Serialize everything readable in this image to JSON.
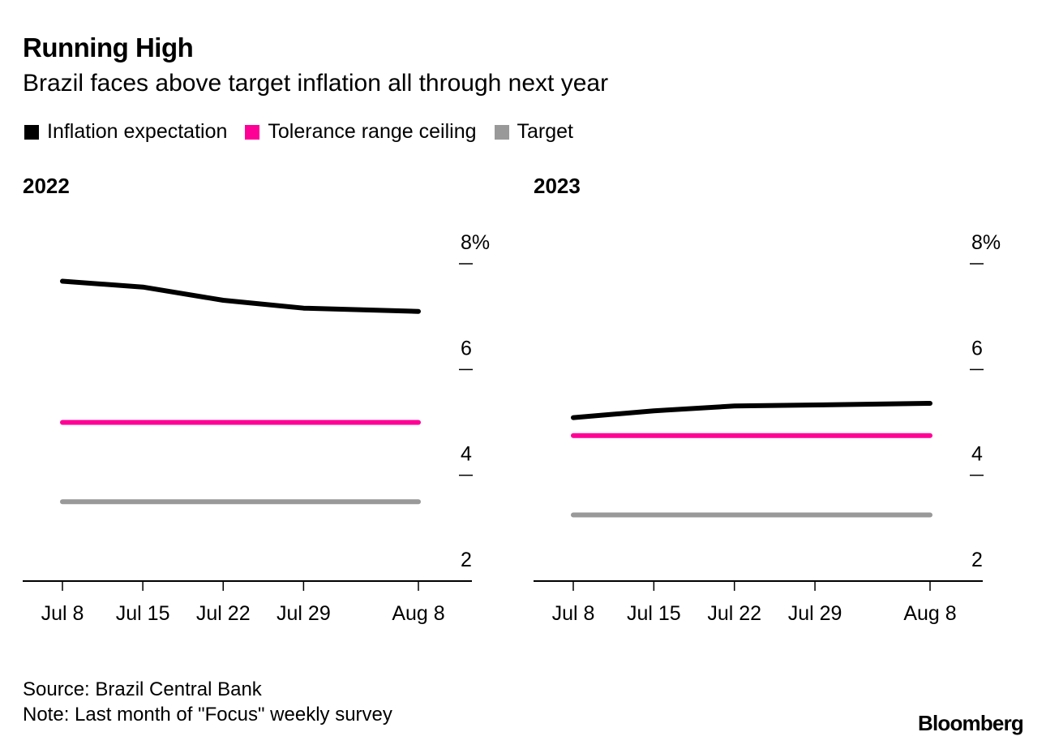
{
  "header": {
    "title": "Running High",
    "subtitle": "Brazil faces above target inflation all through next year"
  },
  "legend": [
    {
      "label": "Inflation expectation",
      "color": "#000000"
    },
    {
      "label": "Tolerance range ceiling",
      "color": "#ff0096"
    },
    {
      "label": "Target",
      "color": "#999999"
    }
  ],
  "footer": {
    "source": "Source: Brazil Central Bank",
    "note": "Note: Last month of \"Focus\" weekly survey",
    "brand": "Bloomberg"
  },
  "chart_data": [
    {
      "type": "line",
      "title": "2022",
      "x": [
        "Jul 8",
        "Jul 15",
        "Jul 22",
        "Jul 29",
        "Aug 8"
      ],
      "x_days": [
        0,
        7,
        14,
        21,
        31
      ],
      "ylim": [
        2,
        8
      ],
      "yticks": [
        2,
        4,
        6,
        8
      ],
      "ytick_labels": [
        "2",
        "4",
        "6",
        "8%"
      ],
      "series": [
        {
          "name": "Inflation expectation",
          "color": "#000000",
          "values": [
            7.67,
            7.56,
            7.31,
            7.16,
            7.1
          ]
        },
        {
          "name": "Tolerance range ceiling",
          "color": "#ff0096",
          "values": [
            5.0,
            5.0,
            5.0,
            5.0,
            5.0
          ]
        },
        {
          "name": "Target",
          "color": "#999999",
          "values": [
            3.5,
            3.5,
            3.5,
            3.5,
            3.5
          ]
        }
      ],
      "grid": false
    },
    {
      "type": "line",
      "title": "2023",
      "x": [
        "Jul 8",
        "Jul 15",
        "Jul 22",
        "Jul 29",
        "Aug 8"
      ],
      "x_days": [
        0,
        7,
        14,
        21,
        31
      ],
      "ylim": [
        2,
        8
      ],
      "yticks": [
        2,
        4,
        6,
        8
      ],
      "ytick_labels": [
        "2",
        "4",
        "6",
        "8%"
      ],
      "series": [
        {
          "name": "Inflation expectation",
          "color": "#000000",
          "values": [
            5.09,
            5.22,
            5.31,
            5.33,
            5.36
          ]
        },
        {
          "name": "Tolerance range ceiling",
          "color": "#ff0096",
          "values": [
            4.75,
            4.75,
            4.75,
            4.75,
            4.75
          ]
        },
        {
          "name": "Target",
          "color": "#999999",
          "values": [
            3.25,
            3.25,
            3.25,
            3.25,
            3.25
          ]
        }
      ],
      "grid": false
    }
  ]
}
